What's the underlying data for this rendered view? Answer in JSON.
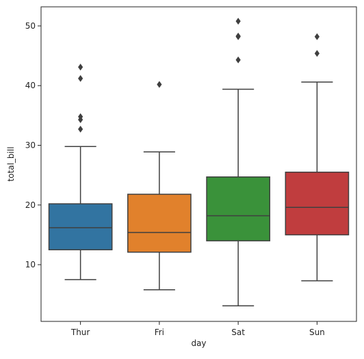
{
  "chart_data": {
    "type": "boxplot",
    "xlabel": "day",
    "ylabel": "total_bill",
    "ylim": [
      0.5,
      53.2
    ],
    "yticks": [
      10,
      20,
      30,
      40,
      50
    ],
    "grid": false,
    "categories": [
      "Thur",
      "Fri",
      "Sat",
      "Sun"
    ],
    "boxes": [
      {
        "category": "Thur",
        "color": "#3274a1",
        "whisker_low": 7.5,
        "q1": 12.5,
        "median": 16.2,
        "q3": 20.2,
        "whisker_high": 29.8,
        "outliers": [
          32.7,
          34.3,
          34.8,
          41.2,
          43.1
        ]
      },
      {
        "category": "Fri",
        "color": "#e1812c",
        "whisker_low": 5.8,
        "q1": 12.1,
        "median": 15.4,
        "q3": 21.8,
        "whisker_high": 28.9,
        "outliers": [
          40.2
        ]
      },
      {
        "category": "Sat",
        "color": "#3a923a",
        "whisker_low": 3.1,
        "q1": 14.0,
        "median": 18.2,
        "q3": 24.7,
        "whisker_high": 39.4,
        "outliers": [
          44.3,
          48.2,
          48.3,
          50.8
        ]
      },
      {
        "category": "Sun",
        "color": "#c03d3e",
        "whisker_low": 7.3,
        "q1": 15.0,
        "median": 19.6,
        "q3": 25.5,
        "whisker_high": 40.6,
        "outliers": [
          45.4,
          48.2
        ]
      }
    ]
  }
}
